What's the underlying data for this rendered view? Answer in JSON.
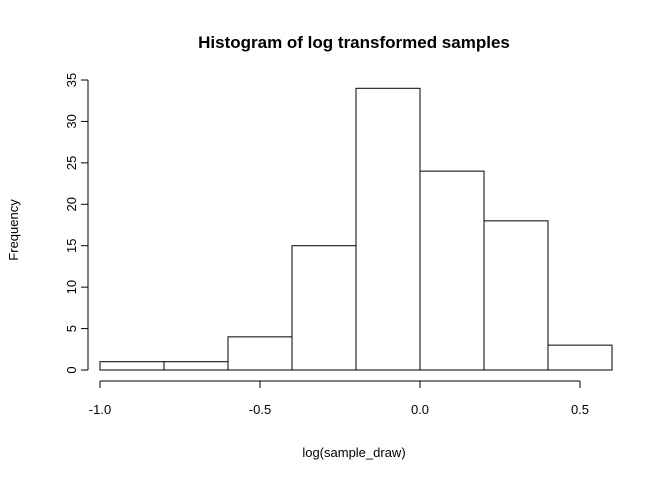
{
  "chart_data": {
    "type": "bar",
    "title": "Histogram of log transformed samples",
    "xlabel": "log(sample_draw)",
    "ylabel": "Frequency",
    "bins": [
      {
        "from": -1.0,
        "to": -0.8,
        "count": 1
      },
      {
        "from": -0.8,
        "to": -0.6,
        "count": 1
      },
      {
        "from": -0.6,
        "to": -0.4,
        "count": 4
      },
      {
        "from": -0.4,
        "to": -0.2,
        "count": 15
      },
      {
        "from": -0.2,
        "to": 0.0,
        "count": 34
      },
      {
        "from": 0.0,
        "to": 0.2,
        "count": 24
      },
      {
        "from": 0.2,
        "to": 0.4,
        "count": 18
      },
      {
        "from": 0.4,
        "to": 0.6,
        "count": 3
      }
    ],
    "xticks": [
      {
        "value": -1.0,
        "label": "-1.0"
      },
      {
        "value": -0.5,
        "label": "-0.5"
      },
      {
        "value": 0.0,
        "label": "0.0"
      },
      {
        "value": 0.5,
        "label": "0.5"
      }
    ],
    "yticks": [
      {
        "value": 0,
        "label": "0"
      },
      {
        "value": 5,
        "label": "5"
      },
      {
        "value": 10,
        "label": "10"
      },
      {
        "value": 15,
        "label": "15"
      },
      {
        "value": 20,
        "label": "20"
      },
      {
        "value": 25,
        "label": "25"
      },
      {
        "value": 30,
        "label": "30"
      },
      {
        "value": 35,
        "label": "35"
      }
    ],
    "xlim": [
      -1.0,
      0.6
    ],
    "ylim": [
      0,
      35
    ],
    "grid": false,
    "legend": "none",
    "bar_fill": "#ffffff",
    "bar_stroke": "#000000"
  }
}
